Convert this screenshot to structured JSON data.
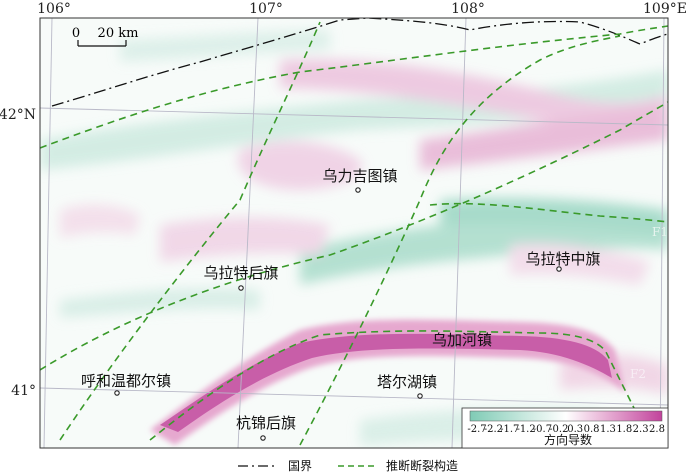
{
  "map": {
    "lon_labels": [
      "106°",
      "107°",
      "108°",
      "109°E"
    ],
    "lat_labels": [
      "42°N",
      "41°"
    ],
    "scale_bar": {
      "zero": "0",
      "distance": "20 km"
    },
    "places": [
      {
        "name": "乌力吉图镇"
      },
      {
        "name": "乌拉特后旗"
      },
      {
        "name": "乌拉特中旗"
      },
      {
        "name": "乌加河镇"
      },
      {
        "name": "呼和温都尔镇"
      },
      {
        "name": "塔尔湖镇"
      },
      {
        "name": "杭锦后旗"
      }
    ],
    "fault_tags": [
      "F1",
      "F2"
    ],
    "colorbar": {
      "ticks": [
        "-2.7",
        "-2.2",
        "-1.7",
        "-1.2",
        "-0.7",
        "-0.2",
        "0.3",
        "0.8",
        "1.3",
        "1.8",
        "2.3",
        "2.8"
      ],
      "title": "方向导数",
      "low_color": "#7fcbb5",
      "mid_color": "#ffffff",
      "high_color": "#c2439c"
    },
    "legend": {
      "border_label": "国界",
      "fault_label": "推断断裂构造"
    },
    "colors": {
      "positive_anomaly": "#c2439c",
      "negative_anomaly": "#8fd1bf",
      "fault_line": "#3a9a2a",
      "border_line": "#111111"
    }
  }
}
